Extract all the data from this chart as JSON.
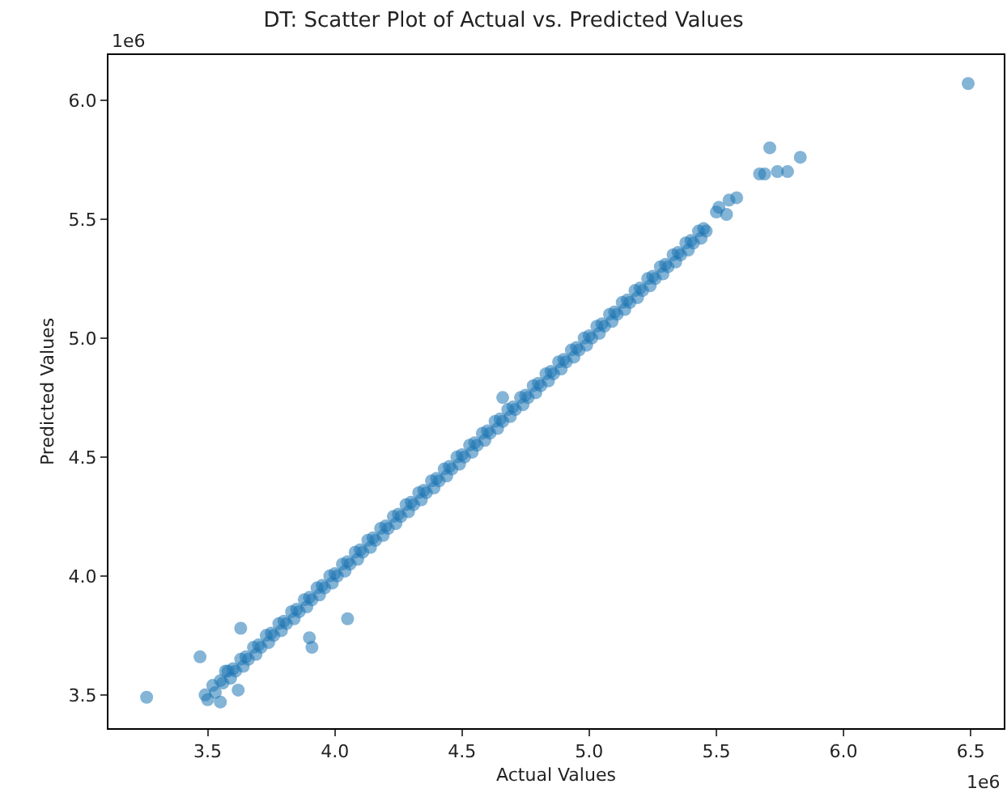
{
  "chart_data": {
    "type": "scatter",
    "title": "DT: Scatter Plot of Actual vs. Predicted Values",
    "xlabel": "Actual Values",
    "ylabel": "Predicted Values",
    "annotations": [
      "1e6",
      "1e6"
    ],
    "xlim": [
      3.11,
      6.63
    ],
    "ylim": [
      3.36,
      6.19
    ],
    "xticks": [
      3.5,
      {
        "value": 4,
        "label": "4.0"
      },
      4.5,
      {
        "value": 5,
        "label": "5.0"
      },
      5.5,
      {
        "value": 6,
        "label": "6.0"
      },
      6.5
    ],
    "yticks": [
      3.5,
      {
        "value": 4,
        "label": "4.0"
      },
      4.5,
      {
        "value": 5,
        "label": "5.0"
      },
      5.5,
      {
        "value": 6,
        "label": "6.0"
      }
    ],
    "marker": "circle",
    "series": [
      {
        "color": "#1f77b4",
        "x": [
          3.49,
          3.52,
          3.55,
          3.58,
          3.6,
          3.63,
          3.65,
          3.68,
          3.7,
          3.73,
          3.75,
          3.78,
          3.8,
          3.83,
          3.85,
          3.88,
          3.9,
          3.93,
          3.95,
          3.98,
          4.0,
          4.03,
          4.05,
          4.08,
          4.1,
          4.13,
          4.15,
          4.18,
          4.2,
          4.23,
          4.25,
          4.28,
          4.3,
          4.33,
          4.35,
          4.38,
          4.4,
          4.43,
          4.45,
          4.48,
          4.5,
          4.53,
          4.55,
          4.58,
          4.6,
          4.63,
          4.65,
          4.68,
          4.7,
          4.73,
          4.75,
          4.78,
          4.8,
          4.83,
          4.85,
          4.88,
          4.9,
          4.93,
          4.95,
          4.98,
          5.0,
          5.03,
          5.05,
          5.08,
          5.1,
          5.13,
          5.15,
          5.18,
          5.2,
          5.23,
          5.25,
          5.28,
          5.3,
          5.33,
          5.35,
          5.38,
          5.4,
          5.43,
          5.45,
          3.5,
          3.53,
          3.56,
          3.59,
          3.61,
          3.64,
          3.66,
          3.69,
          3.71,
          3.74,
          3.76,
          3.79,
          3.81,
          3.84,
          3.86,
          3.89,
          3.91,
          3.94,
          3.96,
          3.99,
          4.01,
          4.04,
          4.06,
          4.09,
          4.11,
          4.14,
          4.16,
          4.19,
          4.21,
          4.24,
          4.26,
          4.29,
          4.31,
          4.34,
          4.36,
          4.39,
          4.41,
          4.44,
          4.46,
          4.49,
          4.51,
          4.54,
          4.56,
          4.59,
          4.61,
          4.64,
          4.66,
          4.69,
          4.71,
          4.74,
          4.76,
          4.79,
          4.81,
          4.84,
          4.86,
          4.89,
          4.91,
          4.94,
          4.96,
          4.99,
          5.01,
          5.04,
          5.06,
          5.09,
          5.11,
          5.14,
          5.16,
          5.19,
          5.21,
          5.24,
          5.26,
          5.29,
          5.31,
          5.34,
          5.36,
          5.39,
          5.41,
          5.44,
          5.46,
          3.26,
          3.47,
          3.55,
          3.62,
          3.57,
          3.63,
          3.9,
          3.91,
          4.05,
          4.66,
          6.49,
          5.71,
          5.78,
          5.83,
          5.67,
          5.69,
          5.74,
          5.55,
          5.58,
          5.54,
          5.51,
          5.5
        ],
        "values": [
          3.5,
          3.54,
          3.56,
          3.6,
          3.61,
          3.65,
          3.66,
          3.7,
          3.71,
          3.75,
          3.76,
          3.8,
          3.81,
          3.85,
          3.86,
          3.9,
          3.91,
          3.95,
          3.96,
          4.0,
          4.01,
          4.05,
          4.06,
          4.1,
          4.11,
          4.15,
          4.16,
          4.2,
          4.21,
          4.25,
          4.26,
          4.3,
          4.31,
          4.35,
          4.36,
          4.4,
          4.41,
          4.45,
          4.46,
          4.5,
          4.51,
          4.55,
          4.56,
          4.6,
          4.61,
          4.65,
          4.66,
          4.7,
          4.71,
          4.75,
          4.76,
          4.8,
          4.81,
          4.85,
          4.86,
          4.9,
          4.91,
          4.95,
          4.96,
          5.0,
          5.01,
          5.05,
          5.06,
          5.1,
          5.11,
          5.15,
          5.16,
          5.2,
          5.21,
          5.25,
          5.26,
          5.3,
          5.31,
          5.35,
          5.36,
          5.4,
          5.41,
          5.45,
          5.46,
          3.48,
          3.51,
          3.55,
          3.57,
          3.6,
          3.62,
          3.65,
          3.67,
          3.7,
          3.72,
          3.75,
          3.77,
          3.8,
          3.82,
          3.85,
          3.87,
          3.9,
          3.92,
          3.95,
          3.97,
          4.0,
          4.02,
          4.05,
          4.07,
          4.1,
          4.12,
          4.15,
          4.17,
          4.2,
          4.22,
          4.25,
          4.27,
          4.3,
          4.32,
          4.35,
          4.37,
          4.4,
          4.42,
          4.45,
          4.47,
          4.5,
          4.52,
          4.55,
          4.57,
          4.6,
          4.62,
          4.65,
          4.67,
          4.7,
          4.72,
          4.75,
          4.77,
          4.8,
          4.82,
          4.85,
          4.87,
          4.9,
          4.92,
          4.95,
          4.97,
          5.0,
          5.02,
          5.05,
          5.07,
          5.1,
          5.12,
          5.15,
          5.17,
          5.2,
          5.22,
          5.25,
          5.27,
          5.3,
          5.32,
          5.35,
          5.37,
          5.4,
          5.42,
          5.45,
          3.49,
          3.66,
          3.47,
          3.52,
          3.6,
          3.78,
          3.74,
          3.7,
          3.82,
          4.75,
          6.07,
          5.8,
          5.7,
          5.76,
          5.69,
          5.69,
          5.7,
          5.58,
          5.59,
          5.52,
          5.55,
          5.53
        ]
      }
    ]
  }
}
